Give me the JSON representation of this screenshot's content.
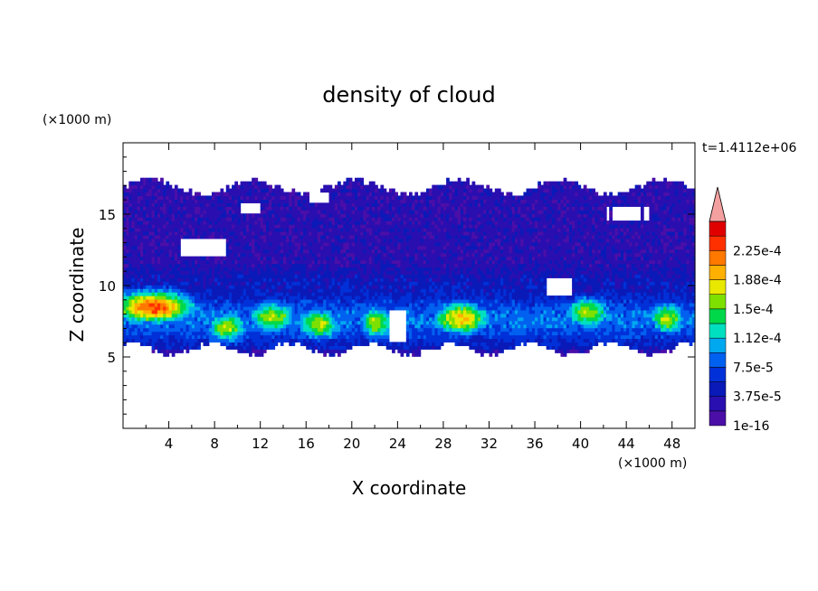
{
  "chart_data": {
    "type": "heatmap",
    "title": "density of cloud",
    "xlabel": "X coordinate",
    "ylabel": "Z coordinate",
    "x_unit": "(×1000 m)",
    "y_unit": "(×1000 m)",
    "time_label": "t=1.4112e+06",
    "xlim": [
      0,
      50
    ],
    "ylim": [
      0,
      20
    ],
    "x_ticks": [
      4,
      8,
      12,
      16,
      20,
      24,
      28,
      32,
      36,
      40,
      44,
      48
    ],
    "y_ticks": [
      5,
      10,
      15
    ],
    "colorbar": {
      "levels": [
        {
          "value": 1e-16,
          "color": "#4b0fa8"
        },
        {
          "value": 1.875e-05,
          "color": "#2a0fb0"
        },
        {
          "value": 3.75e-05,
          "color": "#0a1ab8"
        },
        {
          "value": 5.625e-05,
          "color": "#0030d8"
        },
        {
          "value": 7.5e-05,
          "color": "#0060f0"
        },
        {
          "value": 9.375e-05,
          "color": "#00a8f0"
        },
        {
          "value": 0.000112,
          "color": "#00e0c0"
        },
        {
          "value": 0.000131,
          "color": "#00d84a"
        },
        {
          "value": 0.00015,
          "color": "#7ee000"
        },
        {
          "value": 0.000169,
          "color": "#e8e800"
        },
        {
          "value": 0.000188,
          "color": "#ffb000"
        },
        {
          "value": 0.000206,
          "color": "#ff7800"
        },
        {
          "value": 0.000225,
          "color": "#ff3000"
        },
        {
          "value": 0.000244,
          "color": "#e00000"
        }
      ],
      "labels": [
        "1e-16",
        "3.75e-5",
        "7.5e-5",
        "1.12e-4",
        "1.5e-4",
        "1.88e-4",
        "2.25e-4"
      ],
      "overflow_color": "#f4a0a0"
    },
    "grid": false,
    "legend": "right (colorbar)"
  }
}
